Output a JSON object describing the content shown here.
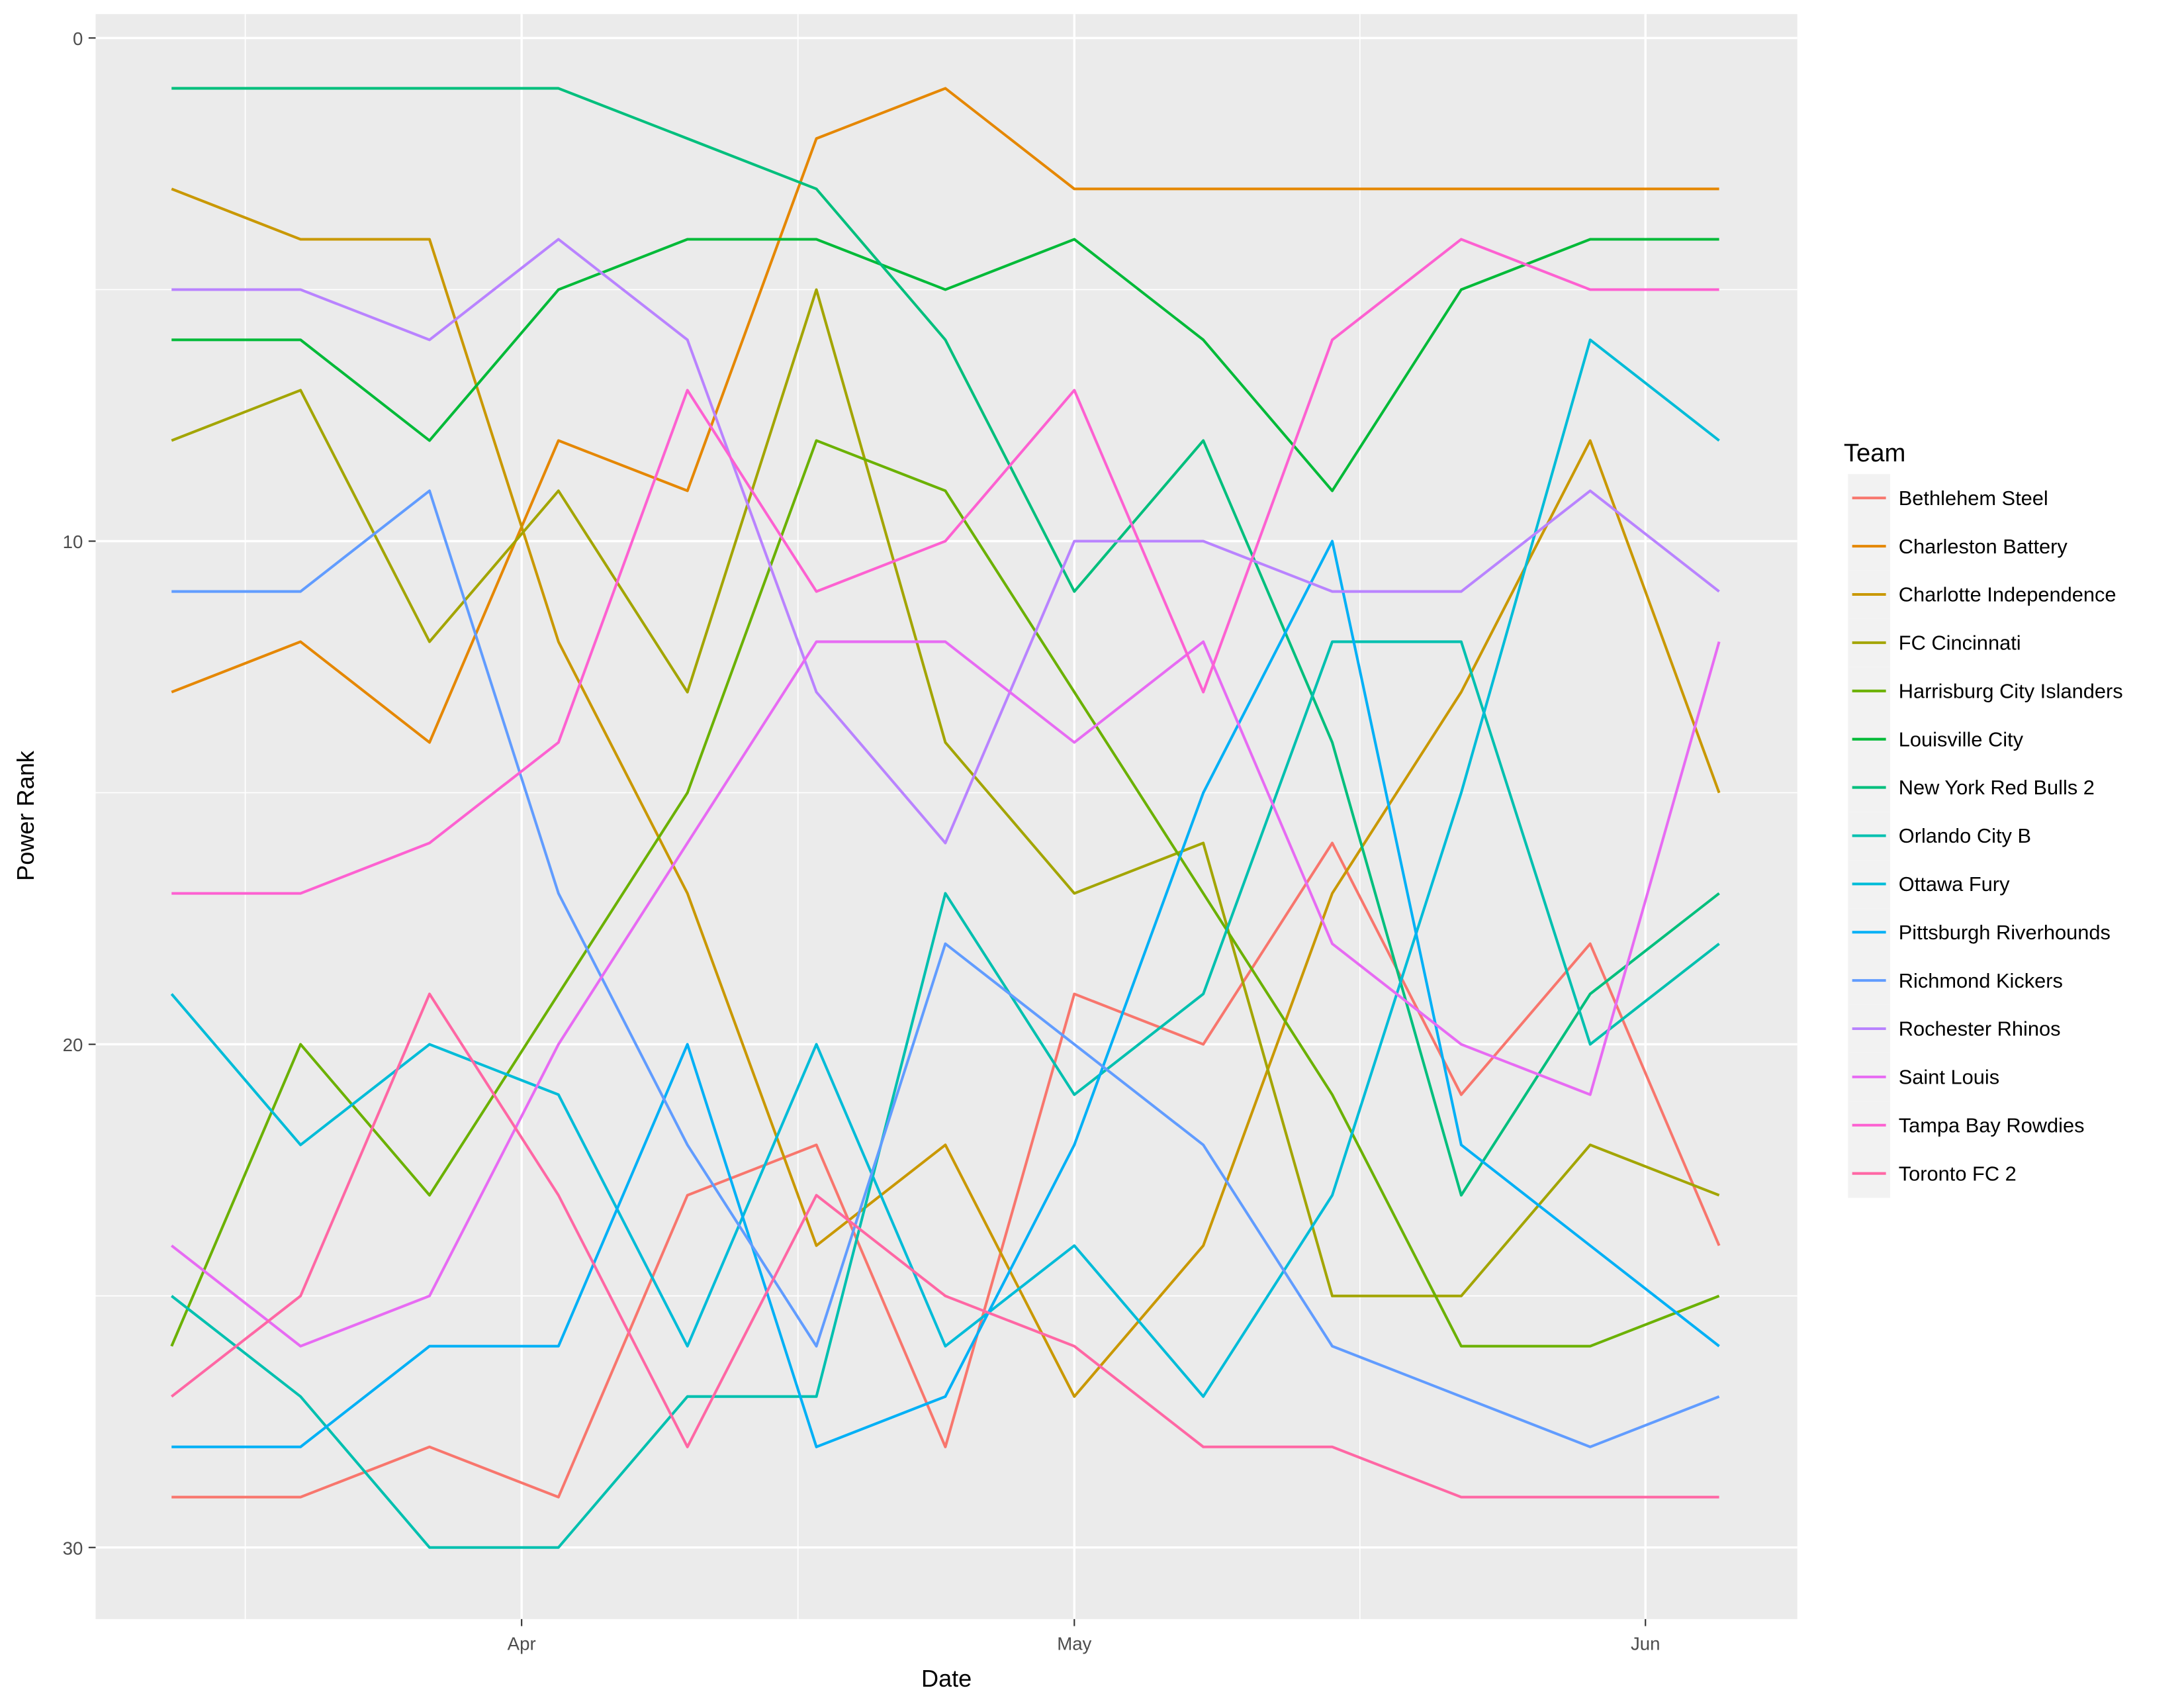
{
  "chart_data": {
    "type": "line",
    "title": "",
    "xlabel": "Date",
    "ylabel": "Power Rank",
    "y_reversed": true,
    "ylim": [
      31.5,
      -0.5
    ],
    "y_ticks": [
      0,
      10,
      20,
      30
    ],
    "x_ticks": [
      {
        "date": "Apr 1",
        "label": "Apr"
      },
      {
        "date": "May 1",
        "label": "May"
      },
      {
        "date": "Jun 1",
        "label": "Jun"
      }
    ],
    "grid": true,
    "legend_title": "Team",
    "legend_position": "right",
    "x": [
      "Mar 13",
      "Mar 20",
      "Mar 27",
      "Apr 3",
      "Apr 10",
      "Apr 17",
      "Apr 24",
      "May 1",
      "May 8",
      "May 15",
      "May 22",
      "May 29",
      "Jun 5"
    ],
    "series": [
      {
        "name": "Bethlehem Steel",
        "color": "#F8766D",
        "values": [
          29,
          29,
          28,
          29,
          23,
          22,
          28,
          19,
          20,
          16,
          21,
          18,
          24
        ]
      },
      {
        "name": "Charleston Battery",
        "color": "#E58700",
        "values": [
          13,
          12,
          14,
          8,
          9,
          2,
          1,
          3,
          3,
          3,
          3,
          3,
          3
        ]
      },
      {
        "name": "Charlotte Independence",
        "color": "#C99800",
        "values": [
          3,
          4,
          4,
          12,
          17,
          24,
          22,
          27,
          24,
          17,
          13,
          8,
          15
        ]
      },
      {
        "name": "FC Cincinnati",
        "color": "#A3A500",
        "values": [
          8,
          7,
          12,
          9,
          13,
          5,
          14,
          17,
          16,
          25,
          25,
          22,
          23
        ]
      },
      {
        "name": "Harrisburg City Islanders",
        "color": "#6BB100",
        "values": [
          26,
          20,
          23,
          19,
          15,
          8,
          9,
          13,
          17,
          21,
          26,
          26,
          25
        ]
      },
      {
        "name": "Louisville City",
        "color": "#00BA38",
        "values": [
          6,
          6,
          8,
          5,
          4,
          4,
          5,
          4,
          6,
          9,
          5,
          4,
          4
        ]
      },
      {
        "name": "New York Red Bulls 2",
        "color": "#00BF7D",
        "values": [
          1,
          1,
          1,
          1,
          2,
          3,
          6,
          11,
          8,
          14,
          23,
          19,
          17
        ]
      },
      {
        "name": "Orlando City B",
        "color": "#00C0AF",
        "values": [
          25,
          27,
          30,
          30,
          27,
          27,
          17,
          21,
          19,
          12,
          12,
          20,
          18
        ]
      },
      {
        "name": "Ottawa Fury",
        "color": "#00BCD8",
        "values": [
          19,
          22,
          20,
          21,
          26,
          20,
          26,
          24,
          27,
          23,
          15,
          6,
          8
        ]
      },
      {
        "name": "Pittsburgh Riverhounds",
        "color": "#00B0F6",
        "values": [
          28,
          28,
          26,
          26,
          20,
          28,
          27,
          22,
          15,
          10,
          22,
          24,
          26
        ]
      },
      {
        "name": "Richmond Kickers",
        "color": "#619CFF",
        "values": [
          11,
          11,
          9,
          17,
          22,
          26,
          18,
          20,
          22,
          26,
          27,
          28,
          27
        ]
      },
      {
        "name": "Rochester Rhinos",
        "color": "#B983FF",
        "values": [
          5,
          5,
          6,
          4,
          6,
          13,
          16,
          10,
          10,
          11,
          11,
          9,
          11
        ]
      },
      {
        "name": "Saint Louis",
        "color": "#E76BF3",
        "values": [
          24,
          26,
          25,
          20,
          16,
          12,
          12,
          14,
          12,
          18,
          20,
          21,
          12
        ]
      },
      {
        "name": "Tampa Bay Rowdies",
        "color": "#FD61D1",
        "values": [
          17,
          17,
          16,
          14,
          7,
          11,
          10,
          7,
          13,
          6,
          4,
          5,
          5
        ]
      },
      {
        "name": "Toronto FC 2",
        "color": "#FF67A4",
        "values": [
          27,
          25,
          19,
          23,
          28,
          23,
          25,
          26,
          28,
          28,
          29,
          29,
          29
        ]
      }
    ]
  }
}
